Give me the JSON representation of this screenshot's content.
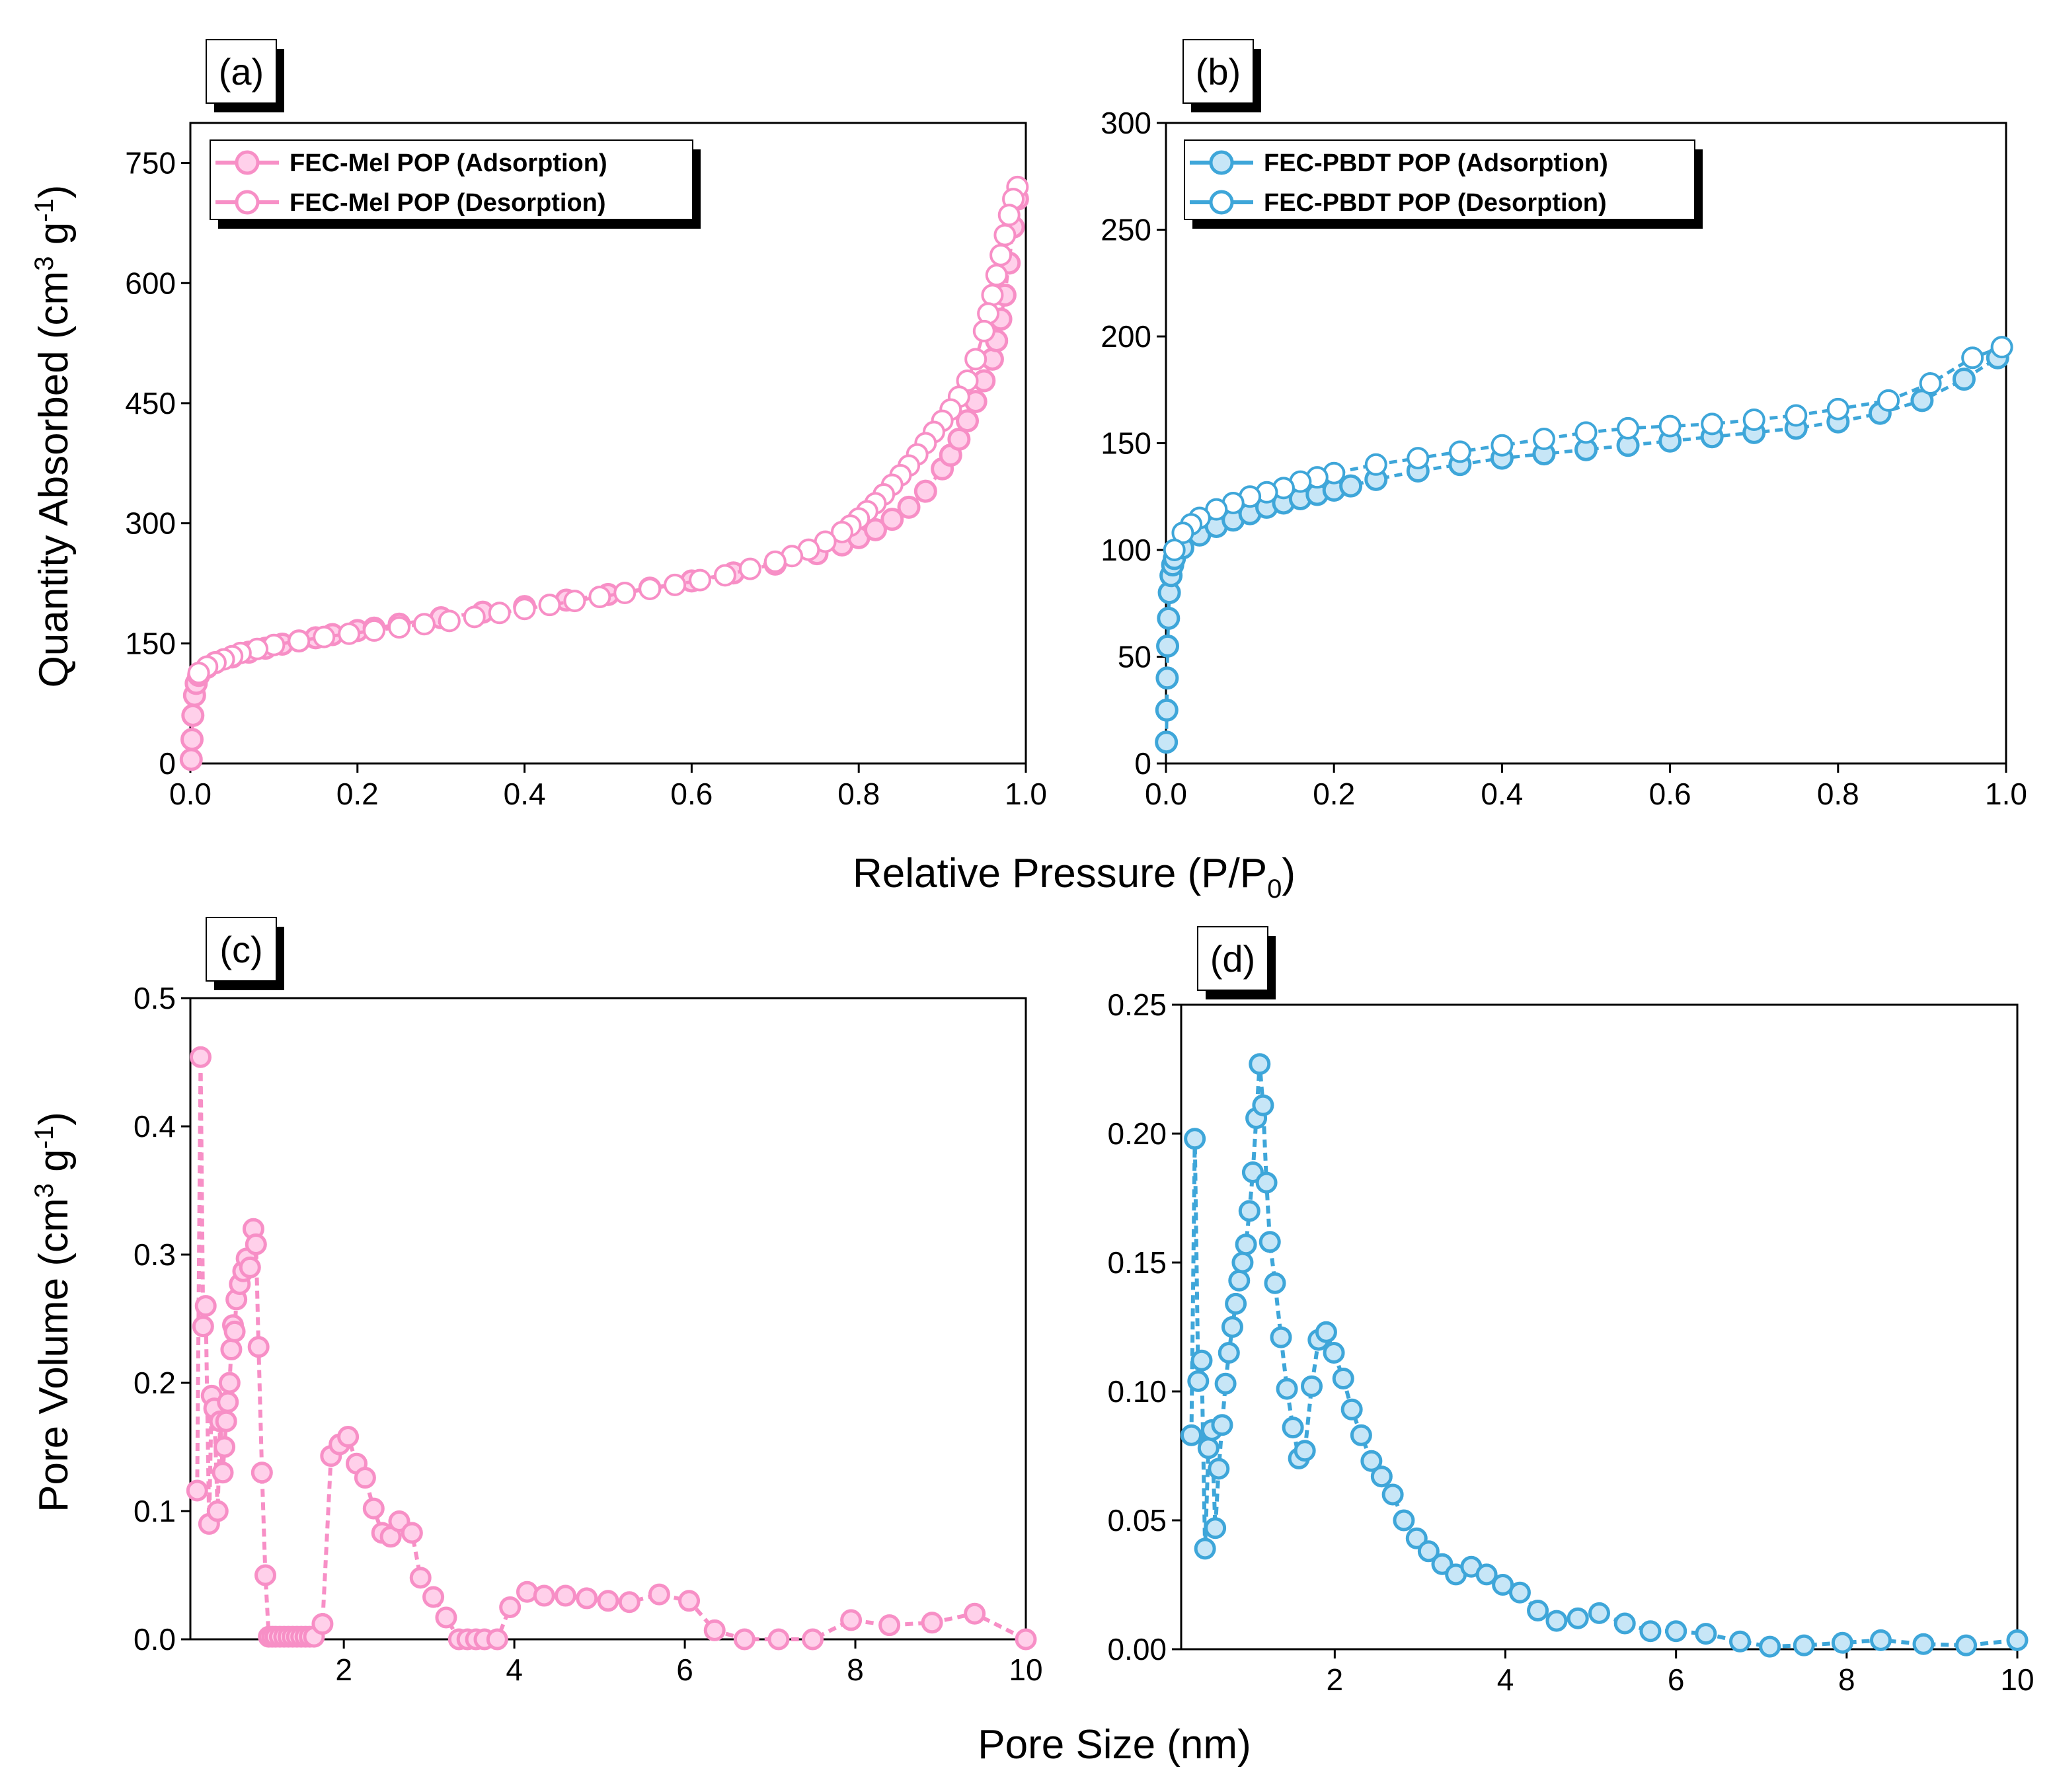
{
  "colors": {
    "pink": "#f78fc6",
    "pink_light": "#ffd0ea",
    "blue": "#3ea6d9",
    "blue_light": "#c7e6f7"
  },
  "figure": {
    "xlabel_top": "Relative Pressure (P/P",
    "xlabel_top_sub": "0",
    "xlabel_top_end": ")",
    "xlabel_bottom": "Pore Size (nm)",
    "ylabel_top": "Quantity Absorbed (cm",
    "ylabel_top_sup1": "3",
    "ylabel_top_mid": " g",
    "ylabel_top_sup2": "-1",
    "ylabel_top_end": ")",
    "ylabel_bottom": "Pore Volume (cm",
    "ylabel_bottom_sup1": "3",
    "ylabel_bottom_mid": " g",
    "ylabel_bottom_sup2": "-1",
    "ylabel_bottom_end": ")"
  },
  "chart_data": [
    {
      "panel": "(a)",
      "type": "scatter",
      "xlim": [
        0,
        1.0
      ],
      "ylim": [
        0,
        800
      ],
      "xticks": [
        0.0,
        0.2,
        0.4,
        0.6,
        0.8,
        1.0
      ],
      "xtick_labels": [
        "0.0",
        "0.2",
        "0.4",
        "0.6",
        "0.8",
        "1.0"
      ],
      "yticks": [
        0,
        150,
        300,
        450,
        600,
        750
      ],
      "ytick_labels": [
        "0",
        "150",
        "300",
        "450",
        "600",
        "750"
      ],
      "legend_position": "top-left",
      "series": [
        {
          "name": "FEC-Mel POP (Adsorption)",
          "color": "pink",
          "marker": "filled",
          "x": [
            0.001,
            0.002,
            0.003,
            0.005,
            0.007,
            0.01,
            0.02,
            0.03,
            0.05,
            0.07,
            0.09,
            0.11,
            0.13,
            0.15,
            0.17,
            0.2,
            0.22,
            0.25,
            0.3,
            0.35,
            0.4,
            0.45,
            0.5,
            0.55,
            0.6,
            0.65,
            0.7,
            0.75,
            0.78,
            0.8,
            0.82,
            0.84,
            0.86,
            0.88,
            0.9,
            0.91,
            0.92,
            0.93,
            0.94,
            0.95,
            0.96,
            0.965,
            0.97,
            0.975,
            0.98,
            0.985,
            0.99
          ],
          "y": [
            5,
            30,
            60,
            85,
            100,
            110,
            120,
            126,
            133,
            139,
            144,
            149,
            153,
            157,
            161,
            166,
            169,
            174,
            182,
            189,
            196,
            204,
            211,
            219,
            228,
            238,
            249,
            262,
            273,
            282,
            292,
            305,
            320,
            340,
            368,
            385,
            405,
            428,
            452,
            478,
            505,
            528,
            555,
            585,
            625,
            670,
            705
          ]
        },
        {
          "name": "FEC-Mel POP (Desorption)",
          "color": "pink",
          "marker": "open",
          "x": [
            0.99,
            0.985,
            0.98,
            0.975,
            0.97,
            0.965,
            0.96,
            0.955,
            0.95,
            0.94,
            0.93,
            0.92,
            0.91,
            0.9,
            0.89,
            0.88,
            0.87,
            0.86,
            0.85,
            0.84,
            0.83,
            0.82,
            0.81,
            0.8,
            0.79,
            0.78,
            0.76,
            0.74,
            0.72,
            0.7,
            0.67,
            0.64,
            0.61,
            0.58,
            0.55,
            0.52,
            0.49,
            0.46,
            0.43,
            0.4,
            0.37,
            0.34,
            0.31,
            0.28,
            0.25,
            0.22,
            0.19,
            0.16,
            0.13,
            0.1,
            0.08,
            0.06,
            0.05,
            0.04,
            0.03,
            0.02,
            0.01
          ],
          "y": [
            720,
            705,
            685,
            660,
            635,
            610,
            585,
            562,
            540,
            505,
            478,
            458,
            442,
            428,
            414,
            400,
            386,
            372,
            360,
            348,
            336,
            325,
            315,
            306,
            297,
            289,
            277,
            267,
            259,
            252,
            243,
            235,
            229,
            223,
            218,
            213,
            208,
            203,
            198,
            193,
            188,
            183,
            178,
            174,
            170,
            166,
            162,
            158,
            153,
            148,
            143,
            138,
            134,
            130,
            126,
            121,
            113
          ]
        }
      ]
    },
    {
      "panel": "(b)",
      "type": "scatter",
      "xlim": [
        0,
        1.0
      ],
      "ylim": [
        0,
        300
      ],
      "xticks": [
        0.0,
        0.2,
        0.4,
        0.6,
        0.8,
        1.0
      ],
      "xtick_labels": [
        "0.0",
        "0.2",
        "0.4",
        "0.6",
        "0.8",
        "1.0"
      ],
      "yticks": [
        0,
        50,
        100,
        150,
        200,
        250,
        300
      ],
      "ytick_labels": [
        "0",
        "50",
        "100",
        "150",
        "200",
        "250",
        "300"
      ],
      "legend_position": "top-left",
      "series": [
        {
          "name": "FEC-PBDT POP (Adsorption)",
          "color": "blue",
          "marker": "filled",
          "x": [
            0.0005,
            0.001,
            0.0015,
            0.002,
            0.003,
            0.004,
            0.006,
            0.008,
            0.01,
            0.02,
            0.04,
            0.06,
            0.08,
            0.1,
            0.12,
            0.14,
            0.16,
            0.18,
            0.2,
            0.22,
            0.25,
            0.3,
            0.35,
            0.4,
            0.45,
            0.5,
            0.55,
            0.6,
            0.65,
            0.7,
            0.75,
            0.8,
            0.85,
            0.9,
            0.95,
            0.99
          ],
          "y": [
            10,
            25,
            40,
            55,
            68,
            80,
            88,
            93,
            96,
            101,
            107,
            111,
            114,
            117,
            120,
            122,
            124,
            126,
            128,
            130,
            133,
            137,
            140,
            143,
            145,
            147,
            149,
            151,
            153,
            155,
            157,
            160,
            164,
            170,
            180,
            190
          ]
        },
        {
          "name": "FEC-PBDT POP (Desorption)",
          "color": "blue",
          "marker": "open",
          "x": [
            0.995,
            0.96,
            0.91,
            0.86,
            0.8,
            0.75,
            0.7,
            0.65,
            0.6,
            0.55,
            0.5,
            0.45,
            0.4,
            0.35,
            0.3,
            0.25,
            0.2,
            0.18,
            0.16,
            0.14,
            0.12,
            0.1,
            0.08,
            0.06,
            0.04,
            0.03,
            0.02,
            0.01
          ],
          "y": [
            195,
            190,
            178,
            170,
            166,
            163,
            161,
            159,
            158,
            157,
            155,
            152,
            149,
            146,
            143,
            140,
            136,
            134,
            132,
            129,
            127,
            125,
            122,
            119,
            115,
            112,
            108,
            100
          ]
        }
      ]
    },
    {
      "panel": "(c)",
      "type": "line",
      "xlim": [
        0.2,
        10
      ],
      "ylim": [
        0,
        0.5
      ],
      "xticks": [
        2,
        4,
        6,
        8,
        10
      ],
      "xtick_labels": [
        "2",
        "4",
        "6",
        "8",
        "10"
      ],
      "yticks": [
        0.0,
        0.1,
        0.2,
        0.3,
        0.4,
        0.5
      ],
      "ytick_labels": [
        "0.0",
        "0.1",
        "0.2",
        "0.3",
        "0.4",
        "0.5"
      ],
      "series": [
        {
          "color": "pink",
          "marker": "filled",
          "x": [
            0.28,
            0.32,
            0.35,
            0.38,
            0.42,
            0.45,
            0.48,
            0.52,
            0.55,
            0.58,
            0.6,
            0.62,
            0.64,
            0.66,
            0.68,
            0.7,
            0.72,
            0.74,
            0.78,
            0.82,
            0.86,
            0.9,
            0.94,
            0.97,
            1.0,
            1.04,
            1.08,
            1.12,
            1.16,
            1.2,
            1.25,
            1.3,
            1.35,
            1.4,
            1.45,
            1.5,
            1.55,
            1.6,
            1.65,
            1.75,
            1.85,
            1.95,
            2.05,
            2.15,
            2.25,
            2.35,
            2.45,
            2.55,
            2.65,
            2.8,
            2.9,
            3.05,
            3.2,
            3.35,
            3.45,
            3.55,
            3.65,
            3.8,
            3.95,
            4.15,
            4.35,
            4.6,
            4.85,
            5.1,
            5.35,
            5.7,
            6.05,
            6.35,
            6.7,
            7.1,
            7.5,
            7.95,
            8.4,
            8.9,
            9.4,
            10.0
          ],
          "y": [
            0.116,
            0.454,
            0.244,
            0.26,
            0.09,
            0.19,
            0.18,
            0.1,
            0.17,
            0.13,
            0.15,
            0.17,
            0.185,
            0.2,
            0.226,
            0.245,
            0.24,
            0.265,
            0.277,
            0.287,
            0.297,
            0.29,
            0.32,
            0.308,
            0.228,
            0.13,
            0.05,
            0.002,
            0.002,
            0.002,
            0.002,
            0.002,
            0.002,
            0.002,
            0.002,
            0.002,
            0.002,
            0.002,
            0.002,
            0.012,
            0.143,
            0.152,
            0.158,
            0.137,
            0.126,
            0.102,
            0.083,
            0.08,
            0.092,
            0.083,
            0.048,
            0.033,
            0.017,
            0.0,
            0.0,
            0.0,
            0.0,
            0.0,
            0.025,
            0.037,
            0.034,
            0.034,
            0.032,
            0.03,
            0.029,
            0.035,
            0.03,
            0.007,
            0.0,
            0.0,
            0.0,
            0.015,
            0.011,
            0.013,
            0.02,
            0.0
          ]
        }
      ]
    },
    {
      "panel": "(d)",
      "type": "line",
      "xlim": [
        0.2,
        10
      ],
      "ylim": [
        0,
        0.25
      ],
      "xticks": [
        2,
        4,
        6,
        8,
        10
      ],
      "xtick_labels": [
        "2",
        "4",
        "6",
        "8",
        "10"
      ],
      "yticks": [
        0.0,
        0.05,
        0.1,
        0.15,
        0.2,
        0.25
      ],
      "ytick_labels": [
        "0.00",
        "0.05",
        "0.10",
        "0.15",
        "0.20",
        "0.25"
      ],
      "series": [
        {
          "color": "blue",
          "marker": "filled",
          "x": [
            0.32,
            0.36,
            0.4,
            0.44,
            0.48,
            0.52,
            0.56,
            0.6,
            0.64,
            0.68,
            0.72,
            0.76,
            0.8,
            0.84,
            0.88,
            0.92,
            0.96,
            1.0,
            1.04,
            1.08,
            1.12,
            1.16,
            1.2,
            1.24,
            1.3,
            1.37,
            1.44,
            1.51,
            1.58,
            1.65,
            1.73,
            1.81,
            1.9,
            1.99,
            2.1,
            2.2,
            2.31,
            2.43,
            2.55,
            2.68,
            2.81,
            2.96,
            3.1,
            3.26,
            3.42,
            3.6,
            3.78,
            3.97,
            4.17,
            4.38,
            4.6,
            4.85,
            5.1,
            5.4,
            5.7,
            6.0,
            6.35,
            6.75,
            7.1,
            7.5,
            7.95,
            8.4,
            8.9,
            9.4,
            10.0
          ],
          "y": [
            0.083,
            0.198,
            0.104,
            0.112,
            0.039,
            0.078,
            0.085,
            0.047,
            0.07,
            0.087,
            0.103,
            0.115,
            0.125,
            0.134,
            0.143,
            0.15,
            0.157,
            0.17,
            0.185,
            0.206,
            0.227,
            0.211,
            0.181,
            0.158,
            0.142,
            0.121,
            0.101,
            0.086,
            0.074,
            0.077,
            0.102,
            0.12,
            0.123,
            0.115,
            0.105,
            0.093,
            0.083,
            0.073,
            0.067,
            0.06,
            0.05,
            0.043,
            0.038,
            0.033,
            0.029,
            0.032,
            0.029,
            0.025,
            0.022,
            0.015,
            0.011,
            0.012,
            0.014,
            0.01,
            0.007,
            0.007,
            0.006,
            0.003,
            0.001,
            0.0015,
            0.0025,
            0.0035,
            0.002,
            0.0015,
            0.0035
          ]
        }
      ]
    }
  ]
}
